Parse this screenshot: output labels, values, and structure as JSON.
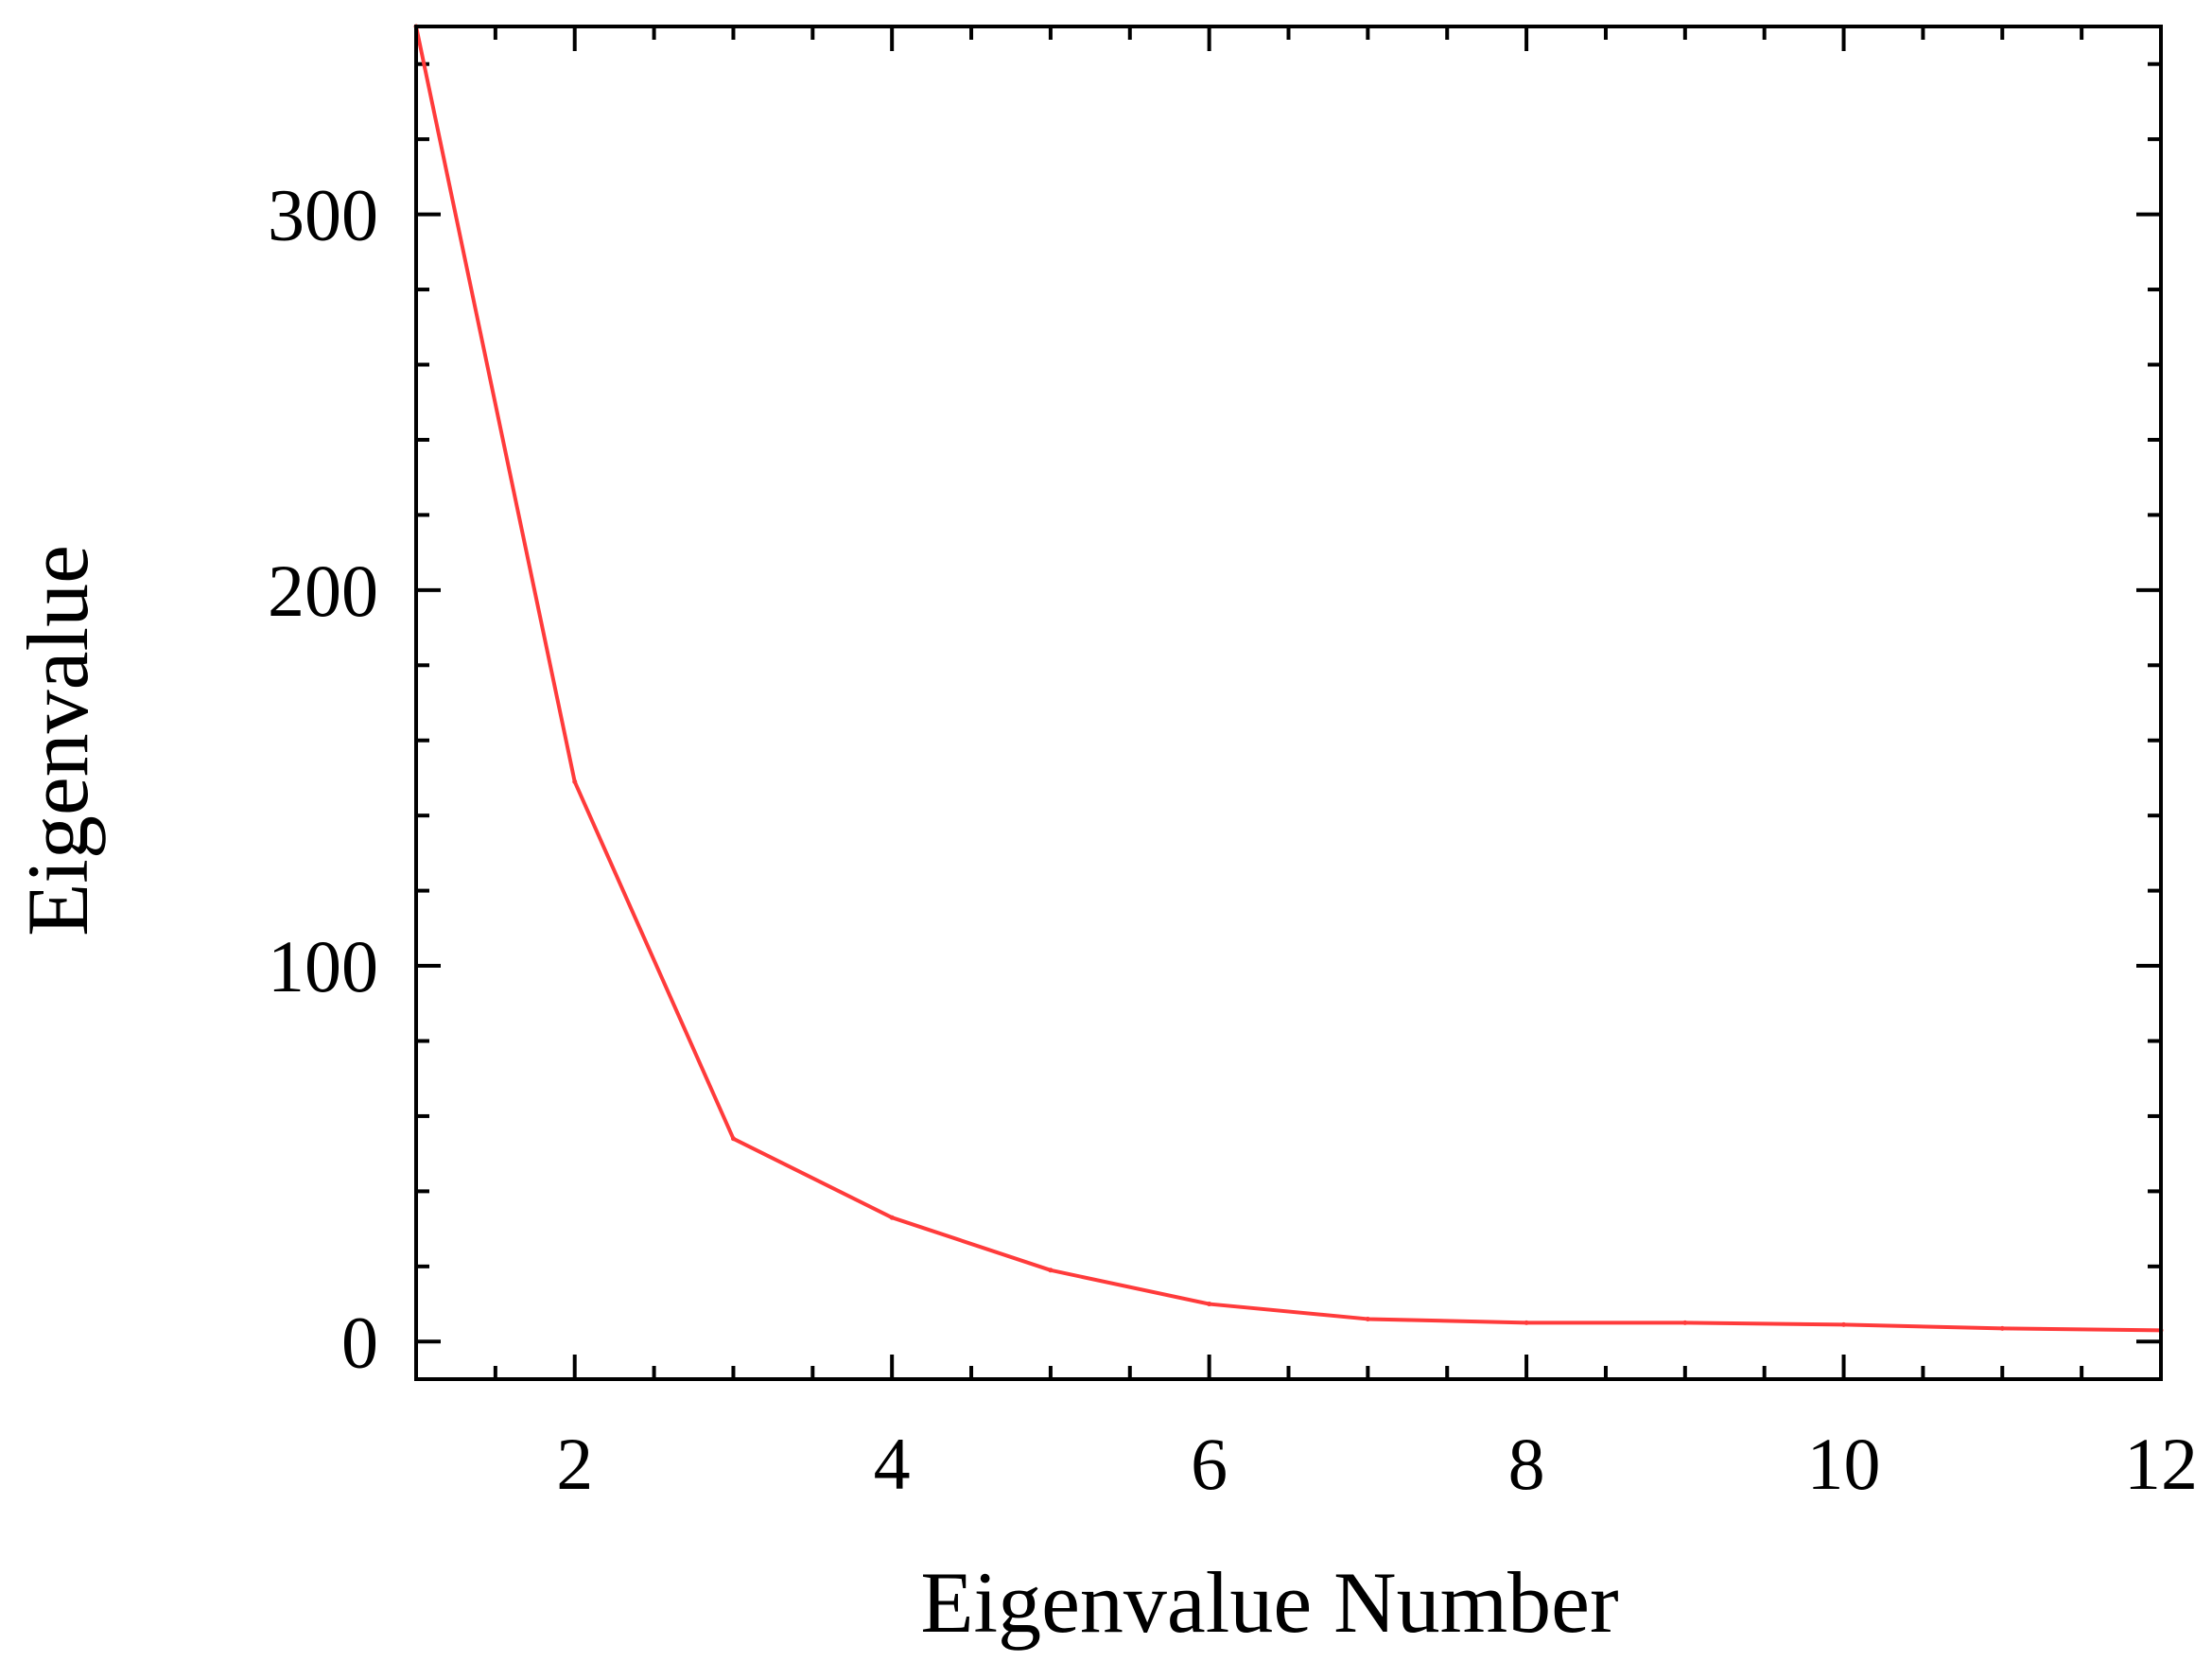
{
  "chart_data": {
    "type": "line",
    "title": "",
    "xlabel": "Eigenvalue Number",
    "ylabel": "Eigenvalue",
    "xlim": [
      1,
      12
    ],
    "ylim": [
      -10,
      350
    ],
    "x_ticks": [
      2,
      4,
      6,
      8,
      10,
      12
    ],
    "x_tick_labels": [
      "2",
      "4",
      "6",
      "8",
      "10",
      "12"
    ],
    "y_ticks": [
      0,
      100,
      200,
      300
    ],
    "y_tick_labels": [
      "0",
      "100",
      "200",
      "300"
    ],
    "grid": false,
    "legend": "none",
    "series": [
      {
        "color": "#ff3b3b",
        "x": [
          1,
          2,
          3,
          4,
          5,
          6,
          7,
          8,
          9,
          10,
          11,
          12
        ],
        "y": [
          350,
          149,
          54,
          33,
          19,
          10,
          6,
          5,
          5,
          4.5,
          3.5,
          3
        ]
      }
    ]
  }
}
